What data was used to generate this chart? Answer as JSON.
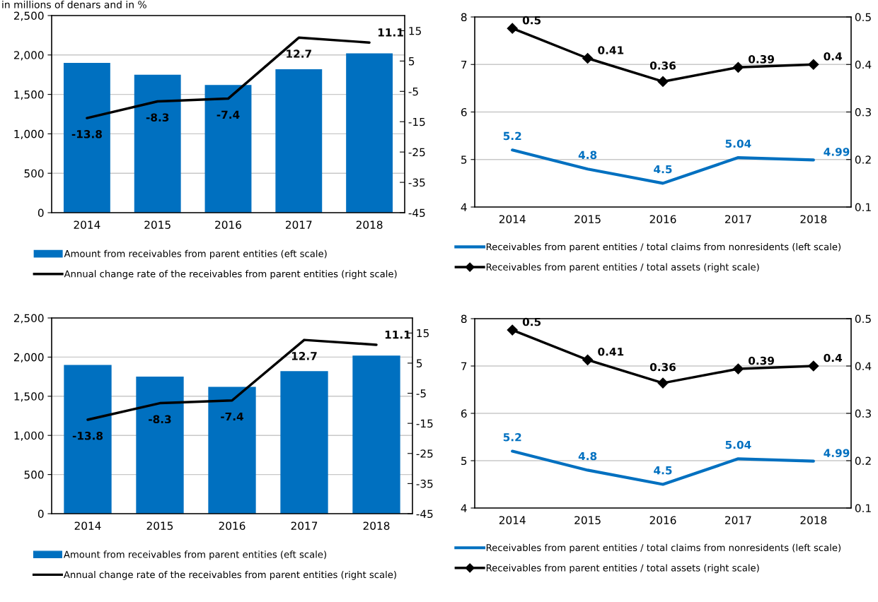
{
  "chart_data": [
    {
      "type": "bar",
      "annotations": [
        "in millions of denars and in %"
      ],
      "categories": [
        "2014",
        "2015",
        "2016",
        "2017",
        "2018"
      ],
      "ylim": [
        0,
        2500
      ],
      "yticks": [
        0,
        {
          "value": 500,
          "label": "500"
        },
        {
          "value": 1000,
          "label": "1,000"
        },
        {
          "value": 1500,
          "label": "1,500"
        },
        {
          "value": 2000,
          "label": "2,000"
        },
        {
          "value": 2500,
          "label": "2,500"
        }
      ],
      "y2lim": [
        -45,
        20
      ],
      "y2ticks": [
        -45,
        -35,
        -25,
        -15,
        -5,
        5,
        15
      ],
      "grid": "y",
      "legend": "bottom",
      "series": [
        {
          "name": "Amount from receivables from parent entities (eft scale)",
          "type": "bar",
          "color": "#0070c0",
          "values": [
            1900,
            1750,
            1620,
            1820,
            2020
          ]
        },
        {
          "name": "Annual change rate of the receivables from parent entities (right scale)",
          "type": "line",
          "axis": "y2",
          "color": "#000000",
          "values": [
            -13.8,
            -8.3,
            -7.4,
            12.7,
            11.1
          ],
          "value_labels": [
            "-13.8",
            "-8.3",
            "-7.4",
            "12.7",
            "11.1"
          ]
        }
      ]
    },
    {
      "type": "line",
      "categories": [
        "2014",
        "2015",
        "2016",
        "2017",
        "2018"
      ],
      "ylim": [
        4,
        8
      ],
      "yticks": [
        4,
        5,
        6,
        7,
        8
      ],
      "y2lim": [
        0.1,
        0.5
      ],
      "y2ticks": [
        0.1,
        0.2,
        0.3,
        0.4,
        0.5
      ],
      "grid": "y",
      "legend": "bottom",
      "series": [
        {
          "name": "Receivables from parent entities / total claims from nonresidents (left scale)",
          "type": "line",
          "color": "#0070c0",
          "values": [
            5.2,
            4.8,
            4.5,
            5.04,
            4.99
          ],
          "value_labels": [
            "5.2",
            "4.8",
            "4.5",
            "5.04",
            "4.99"
          ]
        },
        {
          "name": "Receivables from parent entities / total assets (right scale)",
          "type": "line",
          "axis": "y2",
          "marker": "diamond",
          "color": "#000000",
          "values": [
            0.476,
            0.413,
            0.364,
            0.394,
            0.4
          ],
          "value_labels": [
            "0.5",
            "0.41",
            "0.36",
            "0.39",
            "0.4"
          ]
        }
      ]
    },
    {
      "type": "bar",
      "categories": [
        "2014",
        "2015",
        "2016",
        "2017",
        "2018"
      ],
      "ylim": [
        0,
        2500
      ],
      "yticks": [
        0,
        {
          "value": 500,
          "label": "500"
        },
        {
          "value": 1000,
          "label": "1,000"
        },
        {
          "value": 1500,
          "label": "1,500"
        },
        {
          "value": 2000,
          "label": "2,000"
        },
        {
          "value": 2500,
          "label": "2,500"
        }
      ],
      "y2lim": [
        -45,
        20
      ],
      "y2ticks": [
        -45,
        -35,
        -25,
        -15,
        -5,
        5,
        15
      ],
      "grid": "y",
      "legend": "bottom",
      "series": [
        {
          "name": "Amount from receivables from parent entities (eft scale)",
          "type": "bar",
          "color": "#0070c0",
          "values": [
            1900,
            1750,
            1620,
            1820,
            2020
          ]
        },
        {
          "name": "Annual change rate of the receivables from parent entities (right scale)",
          "type": "line",
          "axis": "y2",
          "color": "#000000",
          "values": [
            -13.8,
            -8.3,
            -7.4,
            12.7,
            11.1
          ],
          "value_labels": [
            "-13.8",
            "-8.3",
            "-7.4",
            "12.7",
            "11.1"
          ]
        }
      ]
    },
    {
      "type": "line",
      "categories": [
        "2014",
        "2015",
        "2016",
        "2017",
        "2018"
      ],
      "ylim": [
        4,
        8
      ],
      "yticks": [
        4,
        5,
        6,
        7,
        8
      ],
      "y2lim": [
        0.1,
        0.5
      ],
      "y2ticks": [
        0.1,
        0.2,
        0.3,
        0.4,
        0.5
      ],
      "grid": "y",
      "legend": "bottom",
      "series": [
        {
          "name": "Receivables from parent entities / total claims from nonresidents (left scale)",
          "type": "line",
          "color": "#0070c0",
          "values": [
            5.2,
            4.8,
            4.5,
            5.04,
            4.99
          ],
          "value_labels": [
            "5.2",
            "4.8",
            "4.5",
            "5.04",
            "4.99"
          ]
        },
        {
          "name": "Receivables from parent entities / total assets (right scale)",
          "type": "line",
          "axis": "y2",
          "marker": "diamond",
          "color": "#000000",
          "values": [
            0.476,
            0.413,
            0.364,
            0.394,
            0.4
          ],
          "value_labels": [
            "0.5",
            "0.41",
            "0.36",
            "0.39",
            "0.4"
          ]
        }
      ]
    }
  ]
}
